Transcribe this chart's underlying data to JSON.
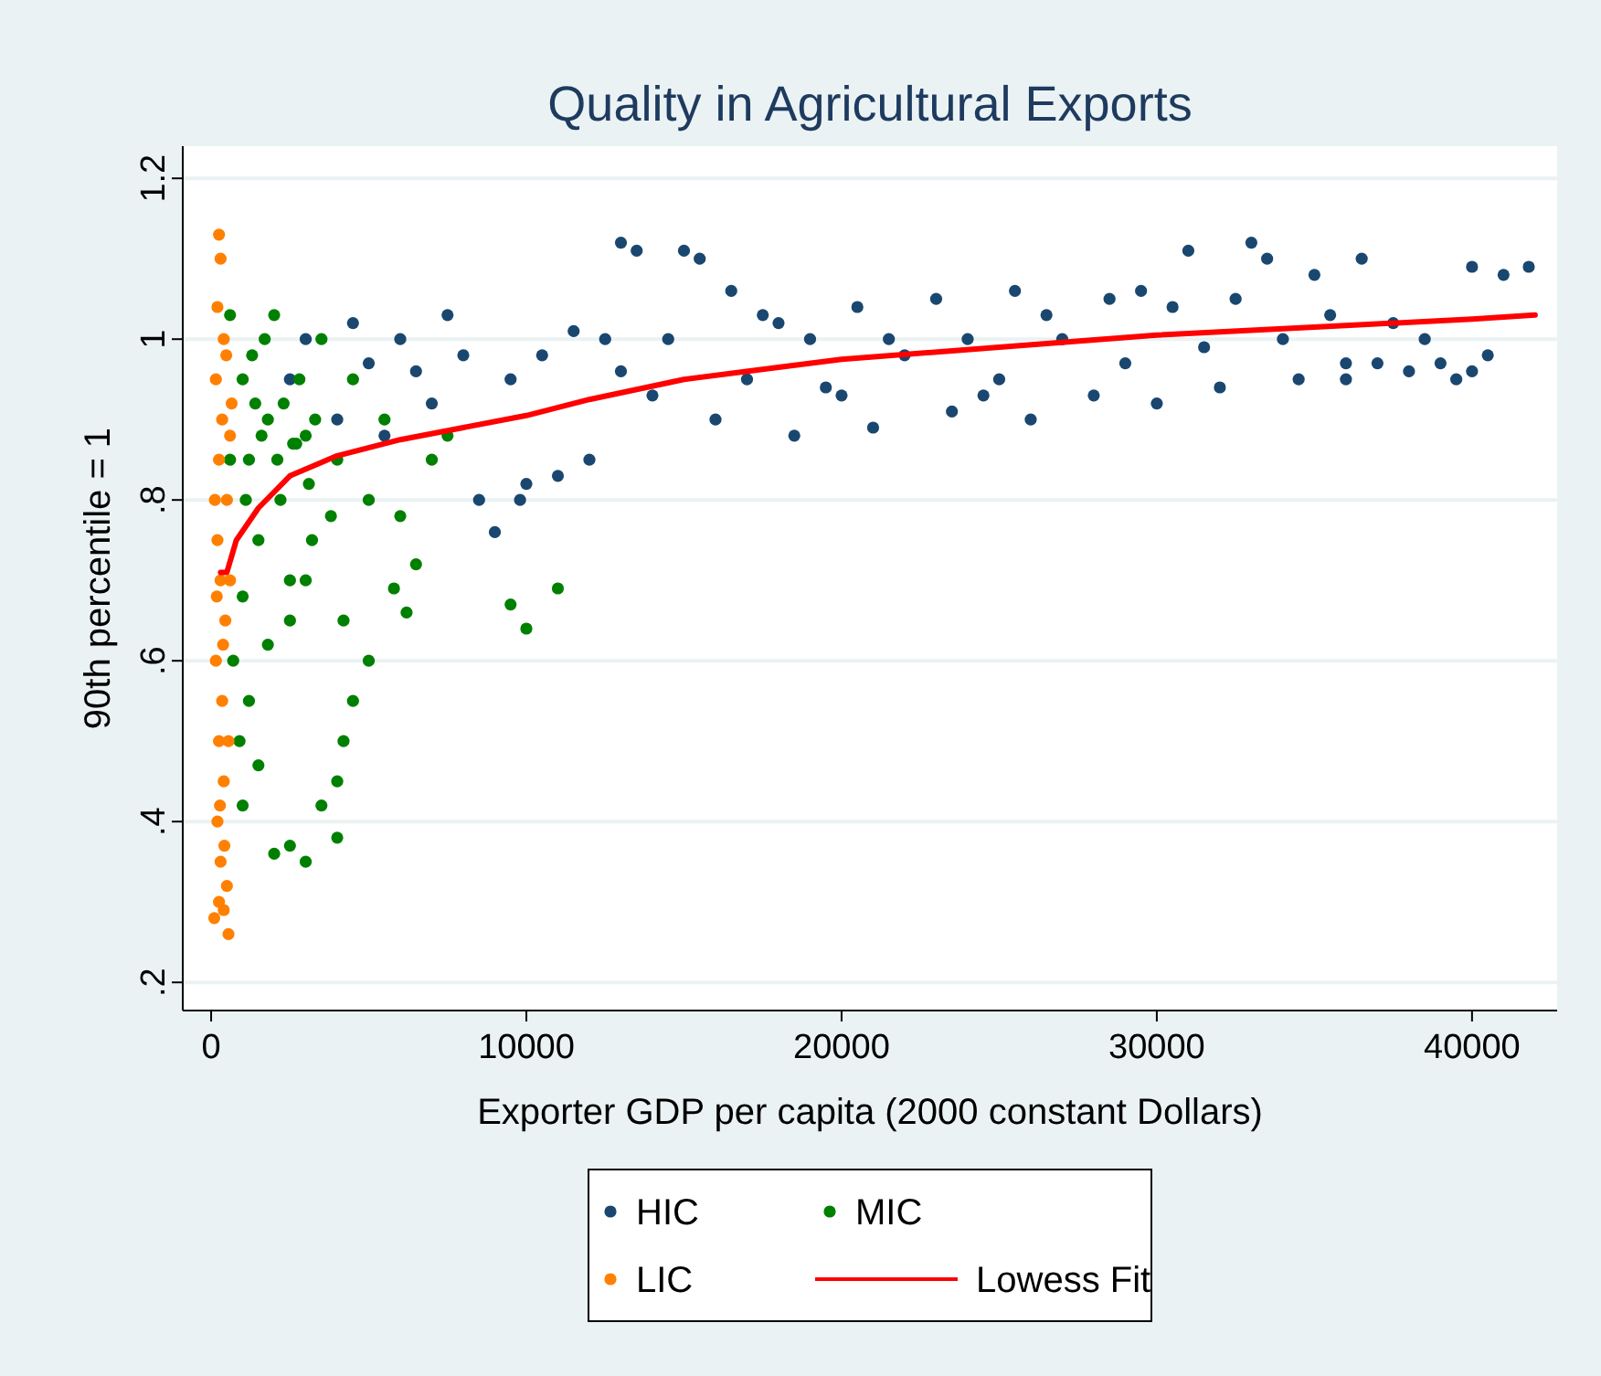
{
  "chart_data": {
    "type": "scatter",
    "title": "Quality in Agricultural Exports",
    "xlabel": "Exporter GDP per capita (2000 constant Dollars)",
    "ylabel": "90th percentile = 1",
    "xlim": [
      -900,
      42700
    ],
    "xticks": [
      0,
      10000,
      20000,
      30000,
      40000
    ],
    "ylim": [
      0.165,
      1.24
    ],
    "yticks": [
      {
        "value": 0.2,
        "label": ".2"
      },
      {
        "value": 0.4,
        "label": ".4"
      },
      {
        "value": 0.6,
        "label": ".6"
      },
      {
        "value": 0.8,
        "label": ".8"
      },
      {
        "value": 1,
        "label": "1"
      },
      {
        "value": 1.2,
        "label": "1.2"
      }
    ],
    "grid": "y",
    "legend": "bottom",
    "series": [
      {
        "name": "HIC",
        "color": "#1a476f",
        "marker": "circle",
        "x": [
          5000,
          6000,
          7000,
          8000,
          8500,
          9000,
          9500,
          9800,
          10000,
          11000,
          12000,
          12500,
          13000,
          13500,
          14000,
          15000,
          15500,
          16000,
          16500,
          17000,
          18000,
          18500,
          19000,
          20000,
          20500,
          21000,
          22000,
          23000,
          23500,
          24000,
          25000,
          25500,
          26000,
          27000,
          28000,
          28500,
          29000,
          30000,
          30500,
          31000,
          31500,
          32000,
          32500,
          33000,
          33500,
          34000,
          34500,
          35000,
          35500,
          36000,
          36500,
          37000,
          37500,
          38000,
          38500,
          39000,
          40000,
          40500,
          41000,
          41800,
          2500,
          3000,
          4000,
          4500,
          5500,
          6500,
          7500,
          10500,
          11500,
          13000,
          14500,
          17500,
          19500,
          21500,
          24500,
          26500,
          29500,
          36000,
          39500,
          40000
        ],
        "values": [
          0.97,
          1.0,
          0.92,
          0.98,
          0.8,
          0.76,
          0.95,
          0.8,
          0.82,
          0.83,
          0.85,
          1.0,
          1.12,
          1.11,
          0.93,
          1.11,
          1.1,
          0.9,
          1.06,
          0.95,
          1.02,
          0.88,
          1.0,
          0.93,
          1.04,
          0.89,
          0.98,
          1.05,
          0.91,
          1.0,
          0.95,
          1.06,
          0.9,
          1.0,
          0.93,
          1.05,
          0.97,
          0.92,
          1.04,
          1.11,
          0.99,
          0.94,
          1.05,
          1.12,
          1.1,
          1.0,
          0.95,
          1.08,
          1.03,
          0.95,
          1.1,
          0.97,
          1.02,
          0.96,
          1.0,
          0.97,
          1.09,
          0.98,
          1.08,
          1.09,
          0.95,
          1.0,
          0.9,
          1.02,
          0.88,
          0.96,
          1.03,
          0.98,
          1.01,
          0.96,
          1.0,
          1.03,
          0.94,
          1.0,
          0.93,
          1.03,
          1.06,
          0.97,
          0.95,
          0.96
        ]
      },
      {
        "name": "MIC",
        "color": "#008000",
        "marker": "circle",
        "x": [
          600,
          1000,
          1200,
          1500,
          1800,
          2000,
          2200,
          2500,
          2800,
          3000,
          3200,
          3500,
          4000,
          4200,
          4500,
          5000,
          5500,
          6000,
          6500,
          7000,
          7500,
          9500,
          10000,
          11000,
          700,
          900,
          1000,
          1200,
          1500,
          2000,
          2500,
          3000,
          3500,
          4000,
          4200,
          4500,
          5000,
          4000,
          1800,
          2500,
          3000,
          1000,
          1300,
          1700,
          2300,
          2700,
          3300,
          3800,
          6200,
          5800,
          600,
          1400,
          1100,
          1600,
          2100,
          2600,
          3100
        ],
        "values": [
          1.03,
          0.95,
          0.85,
          0.75,
          0.9,
          1.03,
          0.8,
          0.7,
          0.95,
          0.88,
          0.75,
          1.0,
          0.85,
          0.65,
          0.95,
          0.8,
          0.9,
          0.78,
          0.72,
          0.85,
          0.88,
          0.67,
          0.64,
          0.69,
          0.6,
          0.5,
          0.42,
          0.55,
          0.47,
          0.36,
          0.37,
          0.35,
          0.42,
          0.45,
          0.5,
          0.55,
          0.6,
          0.38,
          0.62,
          0.65,
          0.7,
          0.68,
          0.98,
          1.0,
          0.92,
          0.87,
          0.9,
          0.78,
          0.66,
          0.69,
          0.85,
          0.92,
          0.8,
          0.88,
          0.85,
          0.87,
          0.82
        ]
      },
      {
        "name": "LIC",
        "color": "#ff8000",
        "marker": "circle",
        "x": [
          250,
          300,
          200,
          400,
          150,
          350,
          250,
          500,
          200,
          300,
          450,
          150,
          350,
          250,
          400,
          200,
          300,
          500,
          250,
          100,
          550,
          400,
          600,
          600,
          550,
          120,
          480,
          380,
          280,
          420,
          650,
          180
        ],
        "values": [
          1.13,
          1.1,
          1.04,
          1.0,
          0.95,
          0.9,
          0.85,
          0.8,
          0.75,
          0.7,
          0.65,
          0.6,
          0.55,
          0.5,
          0.45,
          0.4,
          0.35,
          0.32,
          0.3,
          0.28,
          0.26,
          0.29,
          0.88,
          0.7,
          0.5,
          0.8,
          0.98,
          0.62,
          0.42,
          0.37,
          0.92,
          0.68
        ]
      },
      {
        "name": "Lowess Fit",
        "type": "line",
        "color": "#ff0000",
        "x": [
          300,
          500,
          800,
          1500,
          2500,
          4000,
          6000,
          8000,
          10000,
          12000,
          15000,
          18000,
          20000,
          25000,
          30000,
          35000,
          40000,
          42000
        ],
        "values": [
          0.71,
          0.71,
          0.75,
          0.79,
          0.83,
          0.855,
          0.875,
          0.89,
          0.905,
          0.925,
          0.95,
          0.965,
          0.975,
          0.99,
          1.005,
          1.015,
          1.025,
          1.03
        ]
      }
    ]
  }
}
